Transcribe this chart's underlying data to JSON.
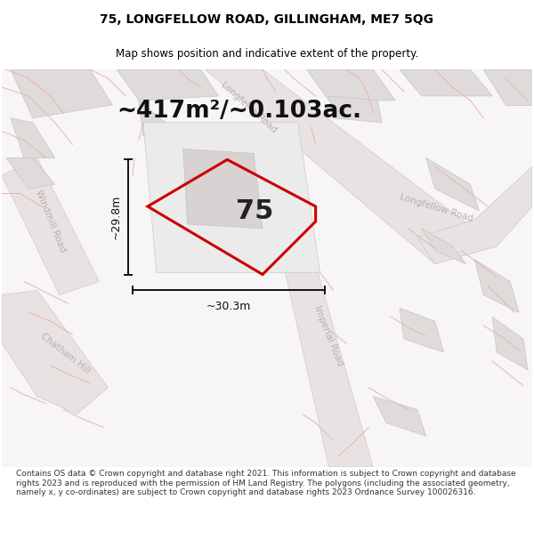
{
  "title": "75, LONGFELLOW ROAD, GILLINGHAM, ME7 5QG",
  "subtitle": "Map shows position and indicative extent of the property.",
  "area_label": "~417m²/~0.103ac.",
  "property_number": "75",
  "dim_width": "~30.3m",
  "dim_height": "~29.8m",
  "footer": "Contains OS data © Crown copyright and database right 2021. This information is subject to Crown copyright and database rights 2023 and is reproduced with the permission of HM Land Registry. The polygons (including the associated geometry, namely x, y co-ordinates) are subject to Crown copyright and database rights 2023 Ordnance Survey 100026316.",
  "map_bg": "#f7f5f5",
  "road_fill": "#e8e2e2",
  "road_edge": "#d0c8c8",
  "block_fill": "#e0dbdb",
  "block_edge": "#c8c2c2",
  "inner_fill": "#d8d2d2",
  "red_line_color": "#e8b0b0",
  "red_boundary_color": "#cc0000",
  "dim_color": "#111111",
  "road_label_color": "#b8b0b0",
  "title_fontsize": 10,
  "subtitle_fontsize": 8.5,
  "area_fontsize": 19,
  "number_fontsize": 22,
  "road_label_size": 7.5,
  "dim_fontsize": 9,
  "footer_fontsize": 6.5
}
